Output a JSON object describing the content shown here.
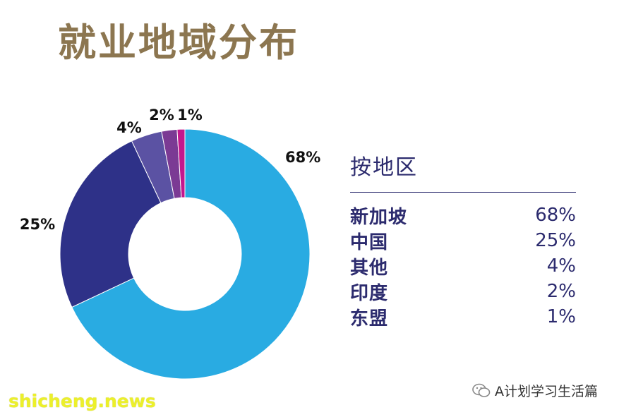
{
  "title": "就业地域分布",
  "chart_data": {
    "type": "pie",
    "donut": true,
    "title": "就业地域分布",
    "categories": [
      "新加坡",
      "中国",
      "其他",
      "印度",
      "东盟"
    ],
    "values": [
      68,
      25,
      4,
      2,
      1
    ],
    "labels": [
      "68%",
      "25%",
      "4%",
      "2%",
      "1%"
    ],
    "colors": [
      "#29abe2",
      "#2e3188",
      "#5b52a3",
      "#7b3a94",
      "#c2188e"
    ]
  },
  "legend": {
    "title": "按地区",
    "rows": [
      {
        "name": "新加坡",
        "value": "68%"
      },
      {
        "name": "中国",
        "value": "25%"
      },
      {
        "name": "其他",
        "value": "4%"
      },
      {
        "name": "印度",
        "value": "2%"
      },
      {
        "name": "东盟",
        "value": "1%"
      }
    ]
  },
  "watermark": "shicheng.news",
  "source": {
    "icon": "wechat-icon",
    "label": "A计划学习生活篇"
  }
}
